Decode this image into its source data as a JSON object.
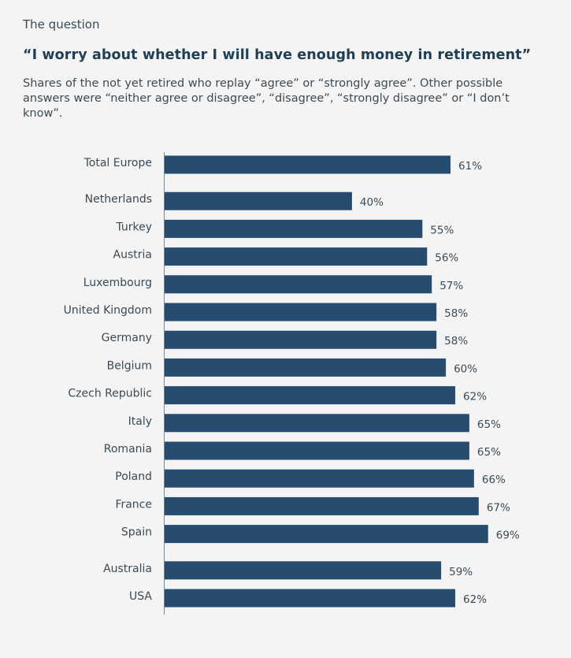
{
  "header": {
    "kicker": "The question",
    "title": "“I worry about whether I will have enough money in retirement”",
    "subtitle": "Shares of the not yet retired who replay “agree” or “strongly agree”. Other possible answers were “neither agree or disagree”, “disagree”, “strongly disagree” or “I don’t know”."
  },
  "colors": {
    "bar": "#264d70",
    "axis": "#7a8690",
    "background": "#f3f4f3"
  },
  "chart_data": {
    "type": "bar",
    "orientation": "horizontal",
    "unit": "%",
    "categories": [
      "Total Europe",
      "Netherlands",
      "Turkey",
      "Austria",
      "Luxembourg",
      "United Kingdom",
      "Germany",
      "Belgium",
      "Czech Republic",
      "Italy",
      "Romania",
      "Poland",
      "France",
      "Spain",
      "Australia",
      "USA"
    ],
    "values": [
      61,
      40,
      55,
      56,
      57,
      58,
      58,
      60,
      62,
      65,
      65,
      66,
      67,
      69,
      59,
      62
    ],
    "value_labels": [
      "61%",
      "40%",
      "55%",
      "56%",
      "57%",
      "58%",
      "58%",
      "60%",
      "62%",
      "65%",
      "65%",
      "66%",
      "67%",
      "69%",
      "59%",
      "62%"
    ],
    "groups": [
      [
        0
      ],
      [
        1,
        2,
        3,
        4,
        5,
        6,
        7,
        8,
        9,
        10,
        11,
        12,
        13
      ],
      [
        14,
        15
      ]
    ],
    "xlim": [
      0,
      100
    ],
    "grid": false,
    "legend": "none"
  }
}
